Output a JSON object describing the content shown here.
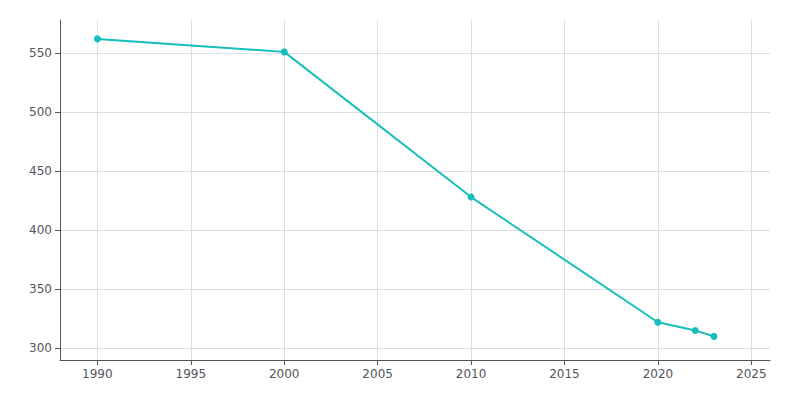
{
  "chart_data": {
    "type": "line",
    "x": [
      1990,
      2000,
      2010,
      2020,
      2022,
      2023
    ],
    "values": [
      562,
      551,
      428,
      322,
      315,
      310
    ],
    "color": "#17BEBB",
    "marker": "circle",
    "xlim": [
      1988,
      2026
    ],
    "ylim": [
      290,
      578
    ],
    "xticks": [
      1990,
      1995,
      2000,
      2005,
      2010,
      2015,
      2020,
      2025
    ],
    "yticks": [
      300,
      350,
      400,
      450,
      500,
      550
    ],
    "grid": true
  }
}
